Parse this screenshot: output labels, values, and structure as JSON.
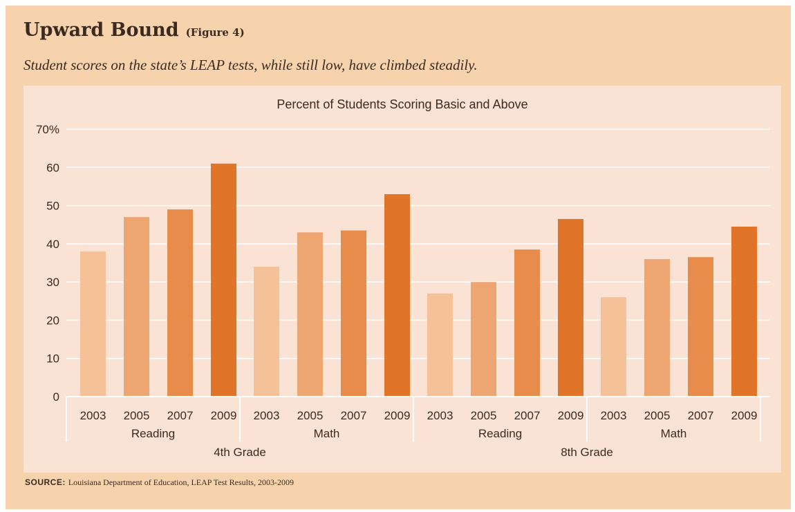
{
  "header": {
    "title": "Upward Bound",
    "figure_label": "(Figure 4)",
    "subtitle": "Student scores on the state’s LEAP tests, while still low, have climbed steadily."
  },
  "source": {
    "label": "SOURCE:",
    "text": "Louisiana Department of Education, LEAP Test Results, 2003-2009"
  },
  "colors": {
    "frame": "#f6d2ad",
    "panel": "#fae3d4",
    "text": "#3a2a20",
    "year_2003": "#f4c198",
    "year_2005": "#eda572",
    "year_2007": "#e88c4c",
    "year_2009": "#e07428"
  },
  "chart_data": {
    "type": "bar",
    "title": "Percent of Students Scoring Basic and Above",
    "xlabel": "",
    "ylabel": "",
    "ylim": [
      0,
      70
    ],
    "yticks": [
      "0",
      "10",
      "20",
      "30",
      "40",
      "50",
      "60",
      "70%"
    ],
    "grid": true,
    "legend": "none",
    "years": [
      "2003",
      "2005",
      "2007",
      "2009"
    ],
    "groups": [
      {
        "grade": "4th Grade",
        "subjects": [
          {
            "subject": "Reading",
            "values": [
              38,
              47,
              49,
              61
            ]
          },
          {
            "subject": "Math",
            "values": [
              34,
              43,
              43.5,
              53
            ]
          }
        ]
      },
      {
        "grade": "8th Grade",
        "subjects": [
          {
            "subject": "Reading",
            "values": [
              27,
              30,
              38.5,
              46.5
            ]
          },
          {
            "subject": "Math",
            "values": [
              26,
              36,
              36.5,
              44.5
            ]
          }
        ]
      }
    ]
  }
}
